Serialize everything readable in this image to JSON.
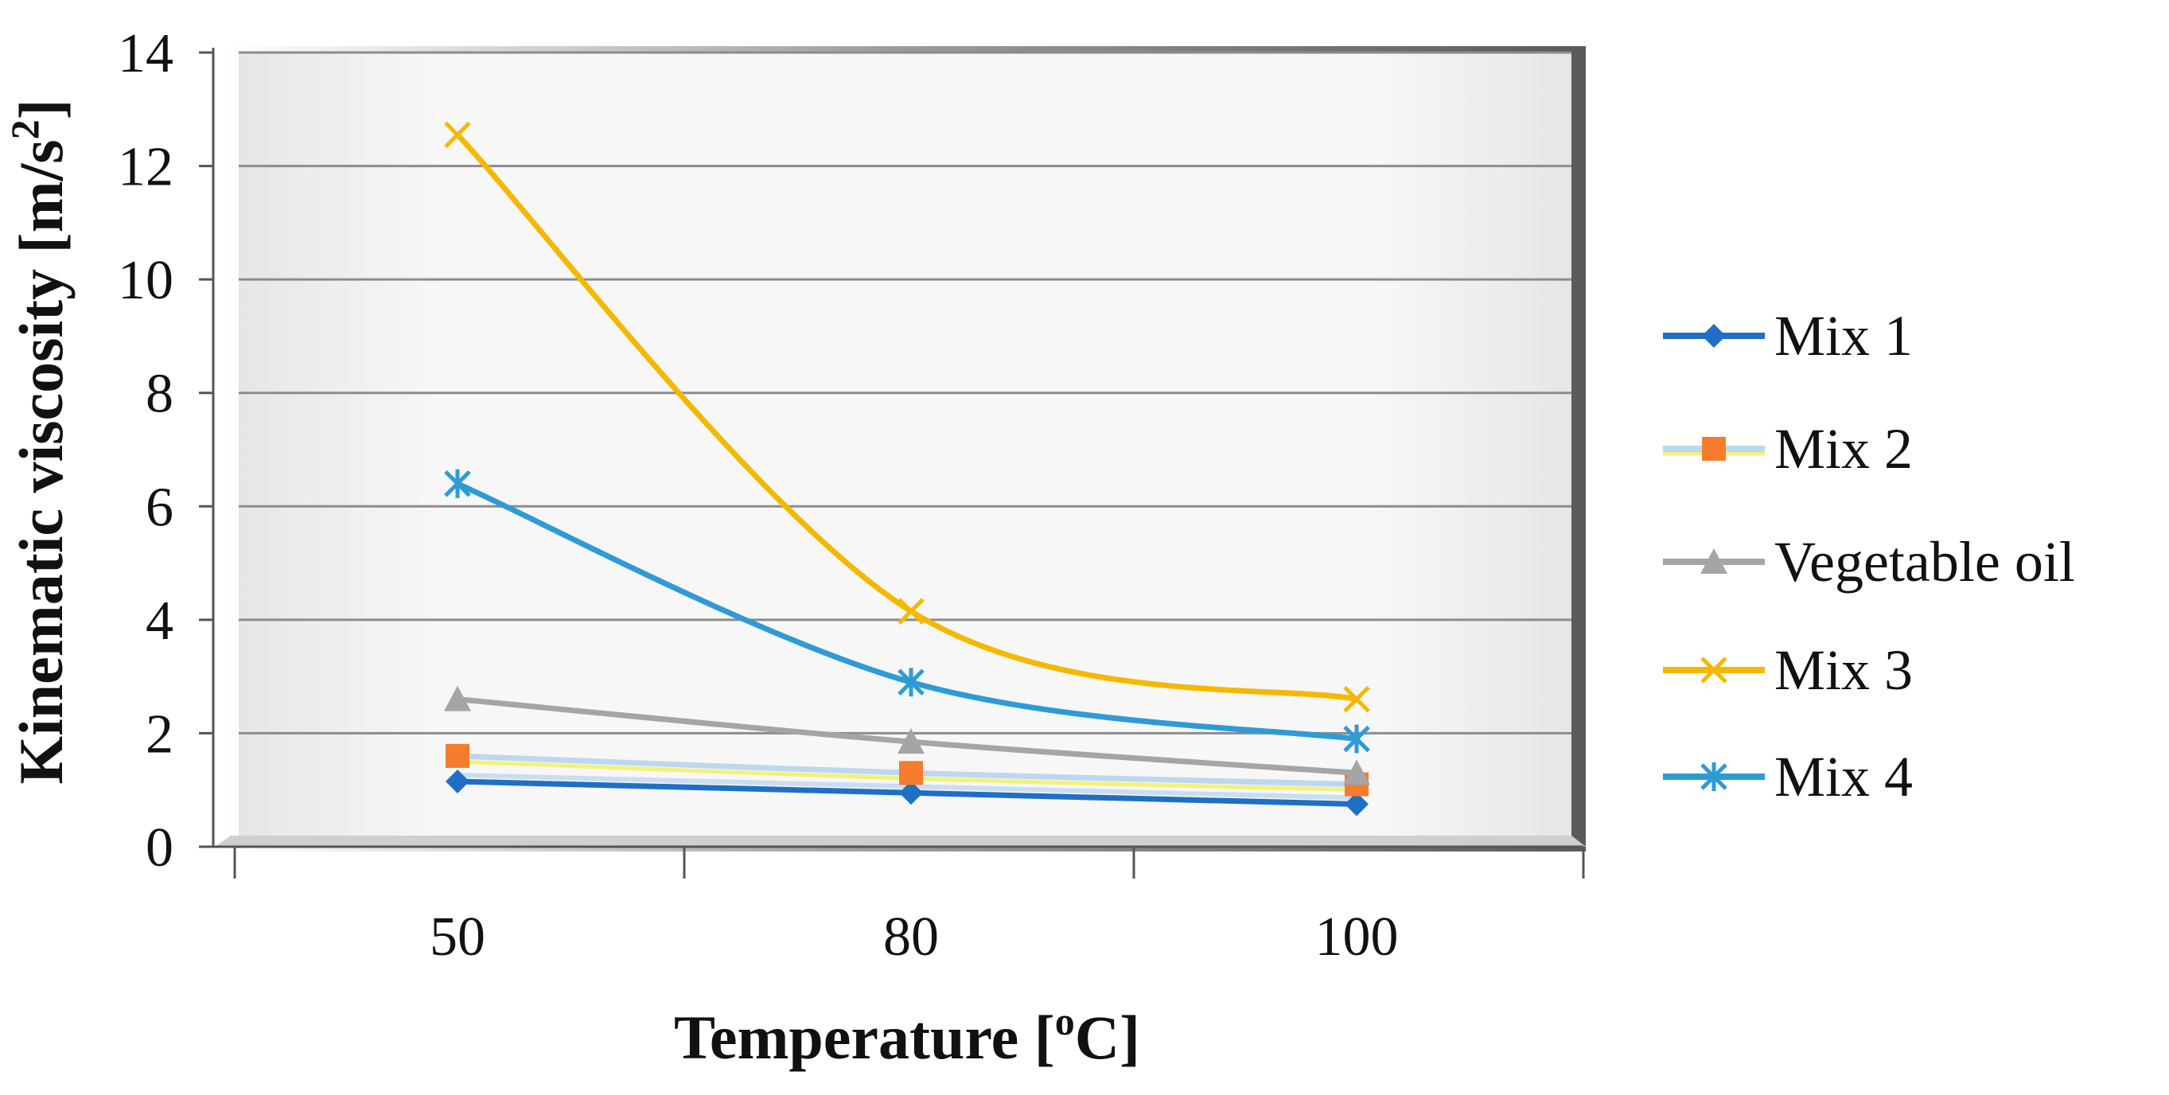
{
  "chart_data": {
    "type": "line",
    "x": [
      50,
      80,
      100
    ],
    "categories": [
      "50",
      "80",
      "100"
    ],
    "xlabel": "Temperature [",
    "xlabel_sup": "o",
    "xlabel_end": "C]",
    "ylabel": "Kinematic viscosity [m/s",
    "ylabel_sup": "2",
    "ylabel_end": "]",
    "ylim": [
      0,
      14
    ],
    "yticks": [
      "0",
      "2",
      "4",
      "6",
      "8",
      "10",
      "12",
      "14"
    ],
    "grid": true,
    "legend_position": "right",
    "series": [
      {
        "name": "Mix 1",
        "values": [
          1.15,
          0.95,
          0.75
        ],
        "color": "#1F6FC4",
        "marker": "diamond"
      },
      {
        "name": "Mix 2",
        "values": [
          1.6,
          1.3,
          1.1
        ],
        "color": "#F47C2C",
        "line_color": "#BDD7EE",
        "marker": "square"
      },
      {
        "name": "Vegetable oil",
        "values": [
          2.6,
          1.85,
          1.3
        ],
        "color": "#A5A5A5",
        "marker": "triangle"
      },
      {
        "name": "Mix 3",
        "values": [
          12.55,
          4.15,
          2.6
        ],
        "color": "#F5B800",
        "marker": "x"
      },
      {
        "name": "Mix 4",
        "values": [
          6.4,
          2.9,
          1.9
        ],
        "color": "#2E9BD6",
        "marker": "star"
      }
    ]
  }
}
